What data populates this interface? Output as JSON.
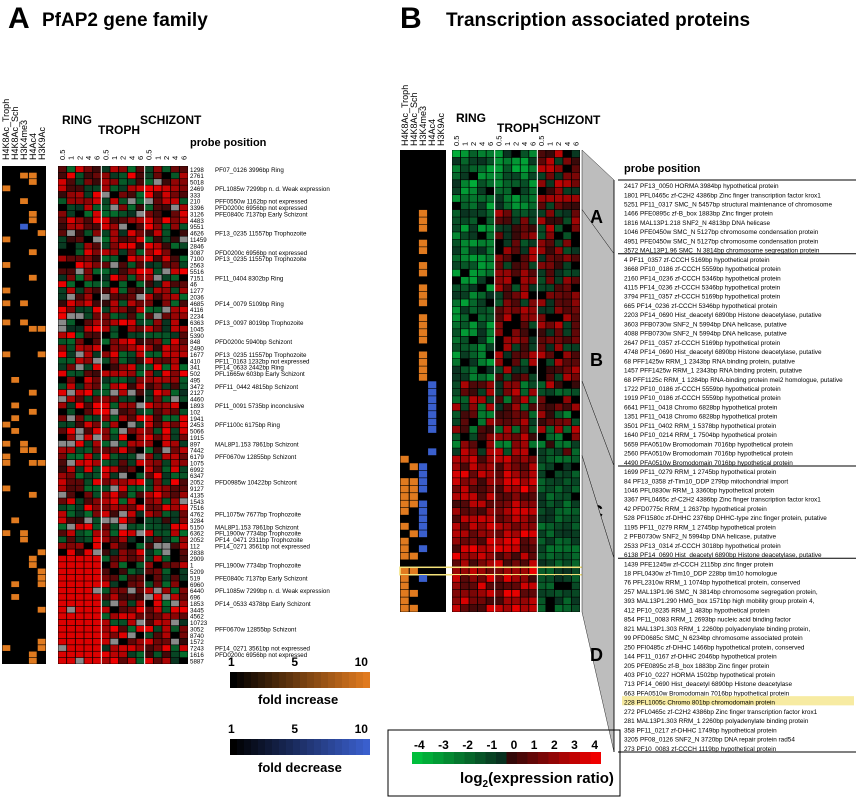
{
  "panels": {
    "A": {
      "letter": "A",
      "title": "PfAP2 gene family"
    },
    "B": {
      "letter": "B",
      "title": "Transcription associated proteins"
    }
  },
  "chip_columns": [
    "H4K8Ac_Troph",
    "H4K8Ac_Sch",
    "H3K4me3",
    "H4Ac4",
    "H3K9Ac"
  ],
  "stages": [
    "RING",
    "TROPH",
    "SCHIZONT"
  ],
  "timepoints": [
    "0.5",
    "1",
    "2",
    "4",
    "6"
  ],
  "probe_header": "probe position",
  "group_letters": [
    "A",
    "B",
    "C",
    "D"
  ],
  "colors": {
    "increase": "#e07a1f",
    "decrease": "#3a5fcd",
    "up": "#e8101a",
    "down": "#18a83a",
    "highlight": "#f4e27a"
  },
  "legend_fold": {
    "ticks": [
      "1",
      "5",
      "10"
    ],
    "increase_label": "fold increase",
    "decrease_label": "fold decrease"
  },
  "legend_log": {
    "ticks": [
      "-4",
      "-3",
      "-2",
      "-1",
      "0",
      "1",
      "2",
      "3",
      "4"
    ],
    "label": "log",
    "label_sub": "2",
    "label_rest": "(expression ratio)"
  },
  "chart_data": [
    {
      "type": "heatmap",
      "title": "PfAP2 gene family",
      "probe_positions": [
        "1298",
        "2761",
        "5018",
        "2469",
        "333",
        "210",
        "3396",
        "3126",
        "4483",
        "9551",
        "4626",
        "11459",
        "2846",
        "3087",
        "7100",
        "2563",
        "5516",
        "7151",
        "46",
        "1277",
        "2036",
        "4685",
        "4116",
        "2234",
        "6363",
        "1045",
        "5390",
        "848",
        "2490",
        "1677",
        "410",
        "341",
        "502",
        "495",
        "3472",
        "2127",
        "4460",
        "1893",
        "102",
        "1941",
        "2453",
        "5066",
        "1915",
        "897",
        "7442",
        "6179",
        "1075",
        "6992",
        "6347",
        "2052",
        "9127",
        "4135",
        "1543",
        "7516",
        "4762",
        "3284",
        "5150",
        "6362",
        "2052",
        "112",
        "2838",
        "2909",
        "1",
        "5209",
        "519",
        "6960",
        "6440",
        "696",
        "1853",
        "3445",
        "4562",
        "10723",
        "3052",
        "8740",
        "1572",
        "7243",
        "1616",
        "5887"
      ],
      "annotations": [
        {
          "row": 0,
          "text": "PF07_0126 3996bp Ring"
        },
        {
          "row": 3,
          "text": "PFL1085w 7299bp n. d. Weak expression"
        },
        {
          "row": 5,
          "text": "PFF0550w 1162bp not expressed"
        },
        {
          "row": 6,
          "text": "PFD0200c 6956bp not expressed"
        },
        {
          "row": 7,
          "text": "PFE0840c 7137bp Early Schizont"
        },
        {
          "row": 10,
          "text": "PF13_0235 11557bp Trophozoite"
        },
        {
          "row": 13,
          "text": "PFD0200c 6956bp not expressed"
        },
        {
          "row": 14,
          "text": "PF13_0235 11557bp Trophozoite"
        },
        {
          "row": 17,
          "text": "PF11_0404 8302bp Ring"
        },
        {
          "row": 21,
          "text": "PF14_0079 5109bp Ring"
        },
        {
          "row": 24,
          "text": "PF13_0097 8019bp Trophozoite"
        },
        {
          "row": 27,
          "text": "PFD0200c 5940bp Schizont"
        },
        {
          "row": 29,
          "text": "PF13_0235 11557bp Trophozoite"
        },
        {
          "row": 30,
          "text": "PF11_0163 1232bp not expressed"
        },
        {
          "row": 31,
          "text": "PF14_0633 2442bp Ring"
        },
        {
          "row": 32,
          "text": "PFL1665w 603bp Early Schizont"
        },
        {
          "row": 34,
          "text": "PFF11_0442 4815bp Schizont"
        },
        {
          "row": 37,
          "text": "PF11_0091 5735bp inconclusive"
        },
        {
          "row": 40,
          "text": "PFF1100c 6175bp Ring"
        },
        {
          "row": 43,
          "text": "MAL8P1.153 7861bp Schizont"
        },
        {
          "row": 45,
          "text": "PFF0670w 12855bp Schizont"
        },
        {
          "row": 49,
          "text": "PFD0985w 10422bp Schizont"
        },
        {
          "row": 54,
          "text": "PFL1075w 7677bp Trophozoite"
        },
        {
          "row": 56,
          "text": "MAL8P1.153 7861bp Schizont"
        },
        {
          "row": 57,
          "text": "PFL1900w 7734bp Trophozoite"
        },
        {
          "row": 58,
          "text": "PF14_0471 2311bp Trophozoite"
        },
        {
          "row": 59,
          "text": "PF14_0271 3561bp not expressed"
        },
        {
          "row": 62,
          "text": "PFL1900w 7734bp Trophozoite"
        },
        {
          "row": 64,
          "text": "PFE0840c 7137bp Early Schizont"
        },
        {
          "row": 66,
          "text": "PFL1085w 7299bp n. d. Weak expression"
        },
        {
          "row": 68,
          "text": "PF14_0533 4378bp Early Schizont"
        },
        {
          "row": 72,
          "text": "PFF0670w 12855bp Schizont"
        },
        {
          "row": 75,
          "text": "PF14_0271 3561bp not expressed"
        },
        {
          "row": 76,
          "text": "PFD0200c 6956bp not expressed"
        }
      ]
    },
    {
      "type": "heatmap",
      "title": "Transcription associated proteins",
      "groups": [
        {
          "letter": "A",
          "rows": [
            "2417 PF13_0050 HORMA 3984bp hypothetical protein",
            "1801 PFL0465c zf-C2H2 4386bp Zinc finger transcription factor krox1",
            "5251 PF11_0317 SMC_N 5457bp structural maintenance of chromosome",
            "1466 PFE0895c zf-B_box 1883bp Zinc finger protein",
            "1816 MAL13P1.218 SNF2_N 4813bp DNA helicase",
            "1046 PFE0450w SMC_N 5127bp chromosome condensation protein",
            "4951 PFE0450w SMC_N 5127bp chromosome condensation protein",
            "3572 MAL13P1.96 SMC_N 3814bp chromosome segregation protein"
          ]
        },
        {
          "letter": "B",
          "rows": [
            "4 PF11_0357 zf-CCCH 5169bp hypothetical protein",
            "3668 PF10_0186 zf-CCCH 5559bp hypothetical protein",
            "2160 PF14_0236 zf-CCCH 5346bp hypothetical protein",
            "4115 PF14_0236 zf-CCCH 5346bp hypothetical protein",
            "3794 PF11_0357 zf-CCCH 5169bp hypothetical protein",
            "665 PF14_0236 zf-CCCH 5346bp hypothetical protein",
            "2203 PF14_0690 Hist_deacetyl 6890bp Histone deacetylase, putative",
            "3603 PFB0730w SNF2_N 5994bp DNA helicase, putative",
            "4088 PFB0730w SNF2_N 5994bp DNA helicase, putative",
            "2647 PF11_0357 zf-CCCH 5169bp hypothetical protein",
            "4748 PF14_0690 Hist_deacetyl 6890bp Histone deacetylase, putative",
            "68 PFF1425w RRM_1 2343bp RNA binding protein, putative",
            "1457 PFF1425w RRM_1 2343bp RNA binding protein, putative",
            "68 PFF1125c RRM_1 1284bp RNA-binding protein mei2 homologue, putative",
            "1722 PF10_0186 zf-CCCH 5559bp hypothetical protein",
            "1919 PF10_0186 zf-CCCH 5559bp hypothetical protein",
            "6641 PF11_0418 Chromo 6828bp hypothetical protein",
            "1351 PF11_0418 Chromo 6828bp hypothetical protein",
            "3501 PF11_0402 RRM_1 5378bp hypothetical protein",
            "1640 PF10_0214 RRM_1 7504bp hypothetical protein",
            "5659 PFA0510w Bromodomain 7016bp hypothetical protein",
            "2560 PFA0510w Bromodomain 7016bp hypothetical protein",
            "4490 PFA0510w Bromodomain 7016bp hypothetical protein"
          ]
        },
        {
          "letter": "C",
          "rows": [
            "1699 PF11_0279 RRM_1 2745bp hypothetical protein",
            "84 PF13_0358 zf-Tim10_DDP 279bp mitochondrial import",
            "1046 PFL0830w RRM_1 3360bp hypothetical protein",
            "3367 PFL0465c zf-C2H2 4386bp Zinc finger transcription factor krox1",
            "42 PFD0775c RRM_1 2637bp hypothetical protein",
            "528 PFI1580c zf-DHHC 2376bp DHHC-type zinc finger protein, putative",
            "1195 PF11_0279 RRM_1 2745bp hypothetical protein",
            "2 PFB0730w SNF2_N 5994bp DNA helicase, putative",
            "2533 PF13_0314 zf-CCCH 3018bp hypothetical protein",
            "6138 PF14_0690 Hist_deacetyl 6890bp Histone deacetylase, putative"
          ]
        },
        {
          "letter": "D",
          "rows": [
            "1439 PFE1245w zf-CCCH 2115bp zinc finger protein",
            "18 PFL0430w zf-Tim10_DDP 228bp tim10 homologue",
            "76 PFL2310w RRM_1 1074bp hypothetical protein, conserved",
            "257 MAL13P1.96 SMC_N 3814bp chromosome segregation protein,",
            "393 MAL13P1.290 HMG_box 1571bp high mobility group protein 4,",
            "412 PF10_0235 RRM_1 483bp hypothetical protein",
            "854 PF11_0083 RRM_1 2693bp nucleic acid binding factor",
            "821 MAL13P1.303 RRM_1 2260bp polyadenylate binding protein,",
            "99 PFD0685c SMC_N 6234bp chromosome associated protein",
            "250 PFI0485c zf-DHHC 1466bp hypothetical protein, conserved",
            "144 PF11_0167 zf-DHHC 2046bp hypothetical protein",
            "205 PFE0895c zf-B_box 1883bp Zinc finger protein",
            "403 PF10_0227 HORMA 1502bp hypothetical protein",
            "713 PF14_0690 Hist_deacetyl 6890bp Histone deacetylase",
            "663 PFA0510w Bromodomain 7016bp hypothetical protein",
            "228 PFL1005c Chromo 801bp chromodomain protein",
            "272 PFL0465c zf-C2H2 4386bp Zinc finger transcription factor krox1",
            "281 MAL13P1.303 RRM_1 2260bp polyadenylate binding protein",
            "358 PF11_0217 zf-DHHC 1749bp hypothetical protein",
            "3205 PF08_0126 SNF2_N 3720bp DNA repair protein rad54",
            "273 PF10_0083 zf-CCCH 1119bp hypothetical protein"
          ]
        }
      ]
    }
  ]
}
